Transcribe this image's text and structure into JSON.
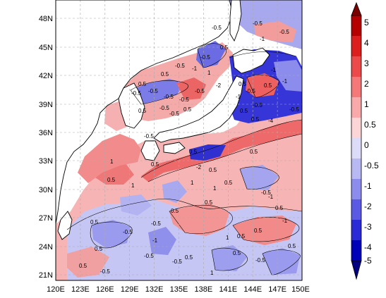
{
  "map": {
    "lon_ticks": [
      "120E",
      "123E",
      "126E",
      "129E",
      "132E",
      "135E",
      "138E",
      "141E",
      "144E",
      "147E",
      "150E"
    ],
    "lat_ticks": [
      "48N",
      "45N",
      "42N",
      "39N",
      "36N",
      "33N",
      "30N",
      "27N",
      "24N",
      "21N"
    ],
    "extent": {
      "lon_min": 120,
      "lon_max": 150,
      "lat_min": 19.5,
      "lat_max": 50
    },
    "gridlines": true,
    "contour_labels": [
      "-0.5",
      "-0.5",
      "-1",
      "-0.5",
      "0.5",
      "-0.5",
      "-1",
      "-0.5",
      "1",
      "0.5",
      "-2",
      "0.5",
      "-0.5",
      "-0.5",
      "-0.5",
      "-0.5",
      "-0.5",
      "0.5",
      "-0.5",
      "0.5",
      "0.5",
      "-0.5",
      "-1",
      "0.5",
      "-1",
      "-0.5",
      "0.5",
      "-0.5",
      "0.5",
      "-4",
      "-1",
      "-0.5",
      "-0.5",
      "0.5",
      "0.5",
      "-2",
      "0.5",
      "0.5",
      "-0.5",
      "1",
      "0.5",
      "1",
      "0.5",
      "-0.5",
      "0.5",
      "-0.5",
      "-1",
      "0.5",
      "0.5",
      "0.5",
      "0.5",
      "1",
      "-1",
      "0.5",
      "-0.5",
      "1",
      "0.5",
      "-1",
      "0.5",
      "1",
      "-0.5",
      "-0.5",
      "0.5",
      "0.5",
      "1",
      "-0.5",
      "0.5"
    ]
  },
  "colorbar": {
    "levels": [
      "5",
      "4",
      "3",
      "2",
      "1",
      "0.5",
      "0",
      "-0.5",
      "-1",
      "-2",
      "-3",
      "-4",
      "-5"
    ],
    "colors": [
      "#7a0000",
      "#b40000",
      "#dc1e1e",
      "#ec4a4a",
      "#f57878",
      "#f9a9a9",
      "#fcd6d6",
      "#dcdcf8",
      "#b8b8f2",
      "#8c8cec",
      "#5a5ae4",
      "#2a2ad6",
      "#0000b8",
      "#000080"
    ]
  },
  "colors": {
    "land": "#ffffff",
    "coast": "#000000",
    "grid": "#aaaaaa"
  }
}
